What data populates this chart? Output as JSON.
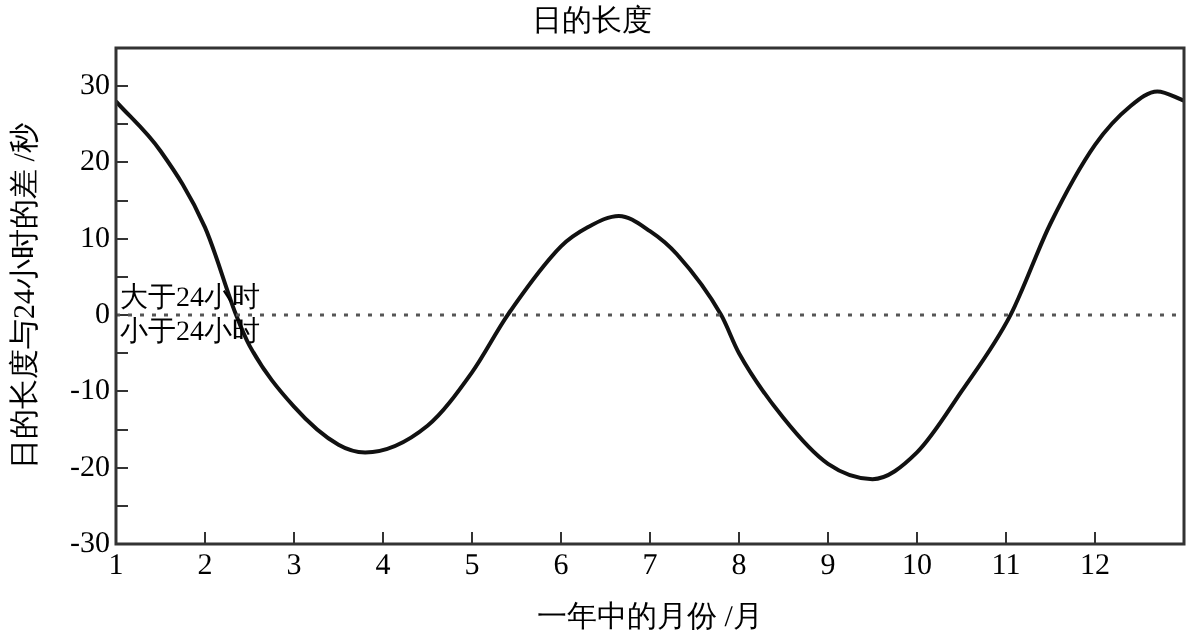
{
  "chart_data": {
    "type": "line",
    "title": "日的长度",
    "xlabel": "一年中的月份 /月",
    "ylabel": "日的长度与24小时的差 /秒",
    "annotations": [
      "大于24小时",
      "小于24小时"
    ],
    "x": [
      1,
      1.5,
      2,
      2.35,
      2.5,
      3,
      3.5,
      3.8,
      4.5,
      5,
      5.4,
      6,
      6.3,
      6.65,
      7,
      7.3,
      7.8,
      8,
      8.5,
      9,
      9.5,
      10,
      10.5,
      11.05,
      11.5,
      12,
      12.4,
      12.7,
      13
    ],
    "series": [
      {
        "color": "#111111",
        "values": [
          28,
          21.5,
          11.5,
          0,
          -4,
          -12,
          -17,
          -18,
          -14.5,
          -7.5,
          0,
          9,
          11.5,
          13,
          11,
          8,
          0,
          -5,
          -13.5,
          -19.5,
          -21.5,
          -18,
          -10,
          0,
          12,
          22.3,
          27.4,
          29.3,
          28.1
        ]
      }
    ],
    "xlim": [
      1,
      13
    ],
    "xticks": [
      1,
      2,
      3,
      4,
      5,
      6,
      7,
      8,
      9,
      10,
      11,
      12
    ],
    "ylim": [
      -30,
      35
    ],
    "yticks": [
      -30,
      {
        "value": -25,
        "label": null
      },
      -20,
      {
        "value": -15,
        "label": null
      },
      -10,
      {
        "value": -5,
        "label": null
      },
      0,
      {
        "value": 5,
        "label": null
      },
      10,
      {
        "value": 15,
        "label": null
      },
      20,
      {
        "value": 25,
        "label": null
      },
      30
    ],
    "ref_lines": [
      {
        "axis": "y",
        "value": 0,
        "color": "#555555",
        "line_style": "dotted"
      }
    ],
    "grid": false,
    "legend": false,
    "marker": "none",
    "line_style": "solid"
  }
}
